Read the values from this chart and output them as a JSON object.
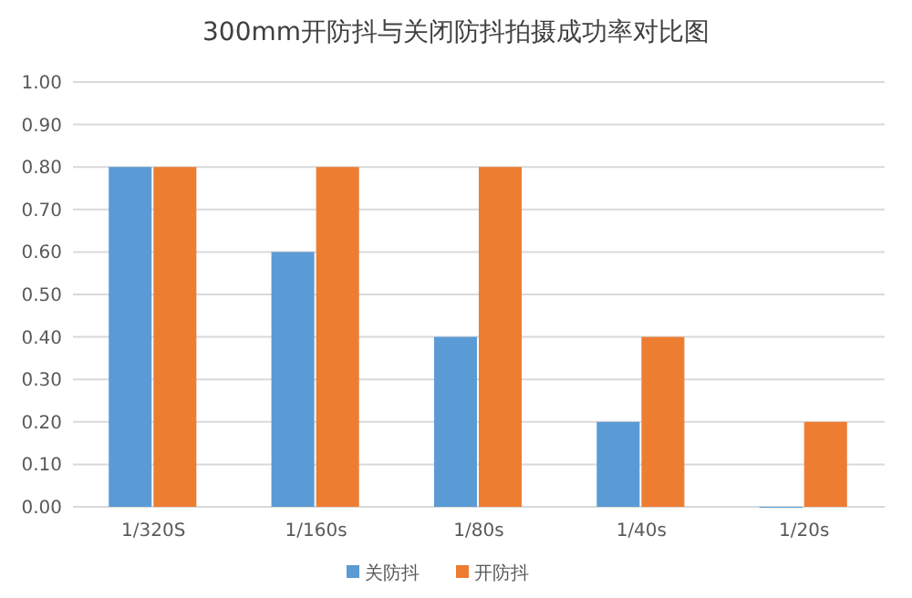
{
  "chart_data": {
    "type": "bar",
    "title": "300mm开防抖与关闭防抖拍摄成功率对比图",
    "categories": [
      "1/320S",
      "1/160s",
      "1/80s",
      "1/40s",
      "1/20s"
    ],
    "series": [
      {
        "name": "关防抖",
        "color": "#5b9bd5",
        "values": [
          0.8,
          0.6,
          0.4,
          0.2,
          0
        ]
      },
      {
        "name": "开防抖",
        "color": "#ed7d31",
        "values": [
          0.8,
          0.8,
          0.8,
          0.4,
          0.2
        ]
      }
    ],
    "ylim": [
      0,
      1
    ],
    "yticks": [
      {
        "value": 0,
        "label": "0.00"
      },
      {
        "value": 0.1,
        "label": "0.10"
      },
      {
        "value": 0.2,
        "label": "0.20"
      },
      {
        "value": 0.3,
        "label": "0.30"
      },
      {
        "value": 0.4,
        "label": "0.40"
      },
      {
        "value": 0.5,
        "label": "0.50"
      },
      {
        "value": 0.6,
        "label": "0.60"
      },
      {
        "value": 0.7,
        "label": "0.70"
      },
      {
        "value": 0.8,
        "label": "0.80"
      },
      {
        "value": 0.9,
        "label": "0.90"
      },
      {
        "value": 1,
        "label": "1.00"
      }
    ],
    "grid": "y",
    "legend": "bottom"
  }
}
